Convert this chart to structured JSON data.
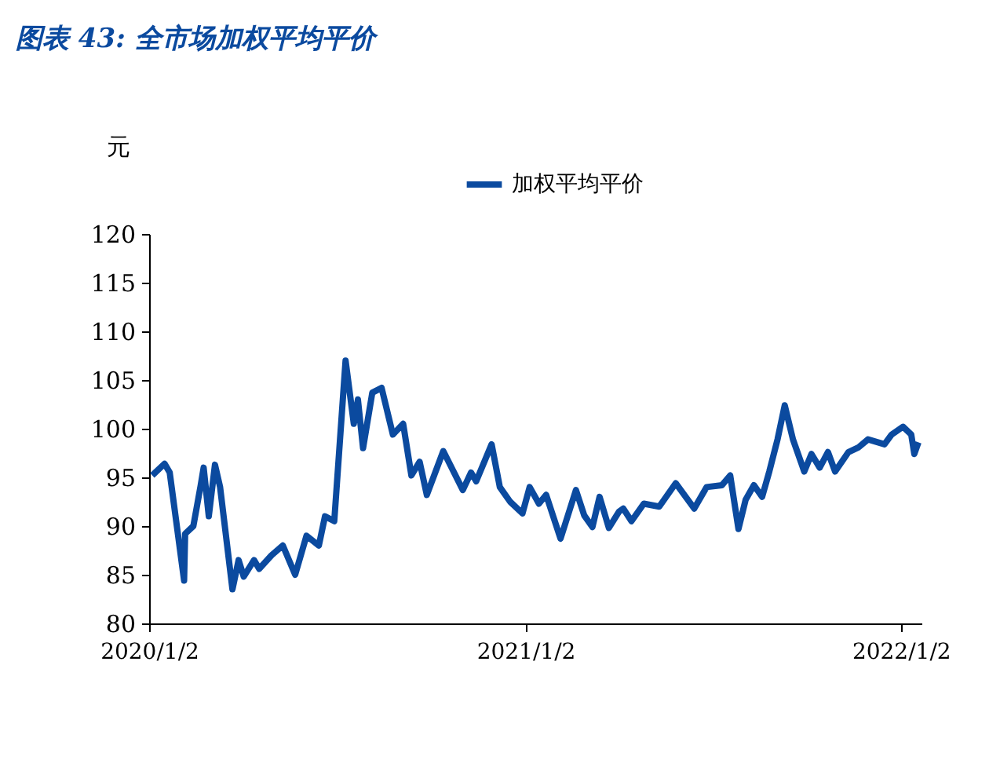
{
  "chart_data": {
    "type": "line",
    "title": "图表 43: 全市场加权平均平价",
    "ylabel": "元",
    "legend": "top",
    "grid": false,
    "marker": "none",
    "line_style": "solid",
    "x": [
      "2020-01-05",
      "2020-01-17",
      "2020-01-22",
      "2020-02-05",
      "2020-02-06",
      "2020-02-14",
      "2020-02-21",
      "2020-02-24",
      "2020-02-29",
      "2020-03-06",
      "2020-03-11",
      "2020-03-15",
      "2020-03-23",
      "2020-03-29",
      "2020-04-03",
      "2020-04-13",
      "2020-04-18",
      "2020-04-30",
      "2020-05-11",
      "2020-05-23",
      "2020-06-03",
      "2020-06-15",
      "2020-06-21",
      "2020-06-30",
      "2020-07-11",
      "2020-07-19",
      "2020-07-23",
      "2020-07-28",
      "2020-08-06",
      "2020-08-15",
      "2020-08-26",
      "2020-09-05",
      "2020-09-13",
      "2020-09-21",
      "2020-09-28",
      "2020-10-14",
      "2020-11-02",
      "2020-11-10",
      "2020-11-15",
      "2020-11-30",
      "2020-12-08",
      "2020-12-18",
      "2020-12-30",
      "2021-01-06",
      "2021-01-15",
      "2021-01-22",
      "2021-02-05",
      "2021-02-20",
      "2021-02-28",
      "2021-03-08",
      "2021-03-15",
      "2021-03-24",
      "2021-04-03",
      "2021-04-07",
      "2021-04-15",
      "2021-04-27",
      "2021-05-12",
      "2021-05-28",
      "2021-06-15",
      "2021-06-27",
      "2021-07-12",
      "2021-07-20",
      "2021-07-28",
      "2021-08-04",
      "2021-08-12",
      "2021-08-20",
      "2021-08-27",
      "2021-09-04",
      "2021-09-11",
      "2021-09-19",
      "2021-09-30",
      "2021-10-07",
      "2021-10-15",
      "2021-10-23",
      "2021-10-30",
      "2021-11-12",
      "2021-11-22",
      "2021-12-01",
      "2021-12-17",
      "2021-12-24",
      "2022-01-04",
      "2022-01-12",
      "2022-01-15",
      "2022-01-19"
    ],
    "xlim": [
      "2020-01-02",
      "2022-01-22"
    ],
    "xticks": [
      {
        "value": "2020-01-02",
        "label": "2020/1/2"
      },
      {
        "value": "2021-01-02",
        "label": "2021/1/2"
      },
      {
        "value": "2022-01-02",
        "label": "2022/1/2"
      }
    ],
    "ylim": [
      80,
      120
    ],
    "yticks": [
      80,
      85,
      90,
      95,
      100,
      105,
      110,
      115,
      120
    ],
    "series": [
      {
        "name": "加权平均平价",
        "color": "#0b4a9f",
        "values": [
          95.2,
          96.4,
          95.5,
          84.4,
          89.2,
          90,
          94.1,
          96,
          91,
          96.3,
          94,
          90.5,
          83.5,
          86.5,
          84.8,
          86.5,
          85.6,
          87,
          88,
          85,
          89,
          88,
          91,
          90.5,
          107,
          100.5,
          103,
          98,
          103.7,
          104.2,
          99.4,
          100.5,
          95.2,
          96.6,
          93.2,
          97.7,
          93.7,
          95.5,
          94.6,
          98.4,
          94,
          92.5,
          91.3,
          94,
          92.3,
          93.2,
          88.7,
          93.7,
          91.1,
          89.9,
          93,
          89.8,
          91.5,
          91.8,
          90.5,
          92.3,
          92,
          94.4,
          91.8,
          94,
          94.2,
          95.2,
          89.7,
          92.7,
          94.2,
          93,
          95.6,
          98.9,
          102.4,
          98.9,
          95.6,
          97.4,
          96,
          97.6,
          95.6,
          97.6,
          98.1,
          98.9,
          98.4,
          99.4,
          100.2,
          99.4,
          97.4,
          98.6
        ]
      }
    ]
  }
}
